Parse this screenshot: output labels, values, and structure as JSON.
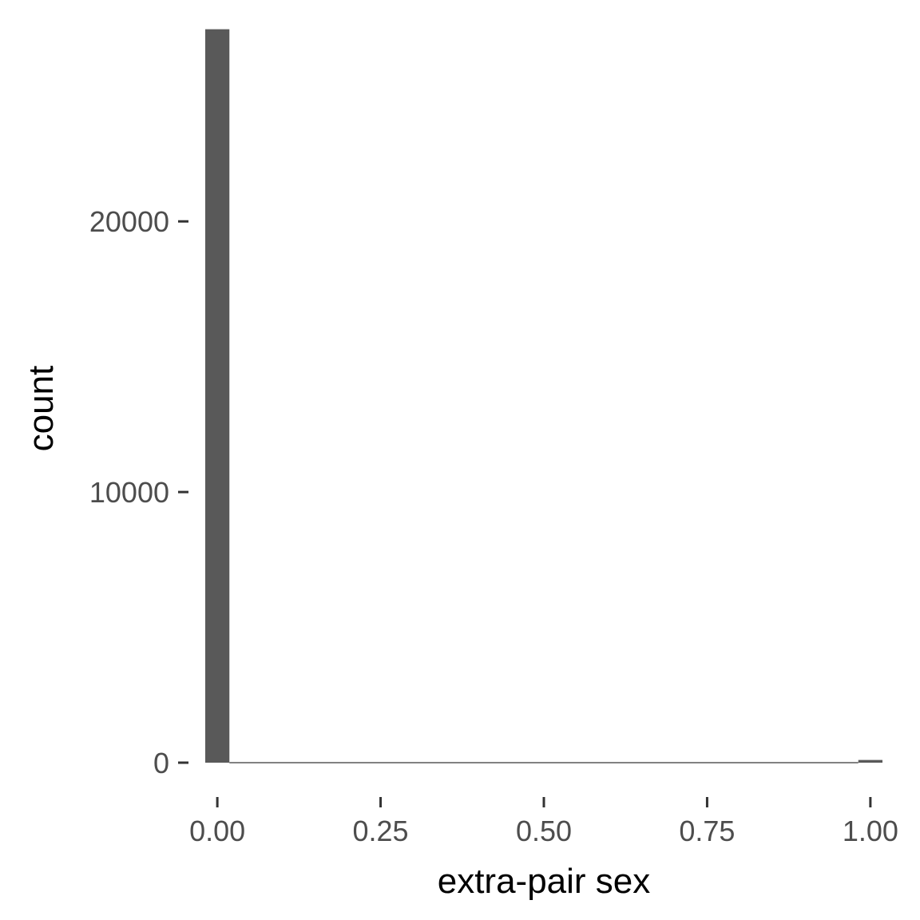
{
  "chart_data": {
    "type": "bar",
    "xlabel": "extra-pair sex",
    "ylabel": "count",
    "xlim": [
      -0.0185,
      1.0185
    ],
    "ylim": [
      0,
      27000
    ],
    "bin_width": 0.037,
    "x_ticks": [
      0.0,
      0.25,
      0.5,
      0.75,
      1.0
    ],
    "x_tick_labels": [
      "0.00",
      "0.25",
      "0.50",
      "0.75",
      "1.00"
    ],
    "y_ticks": [
      0,
      10000,
      20000
    ],
    "y_tick_labels": [
      "0",
      "10000",
      "20000"
    ],
    "bins": [
      {
        "x": 0.0,
        "count": 27100
      },
      {
        "x": 1.0,
        "count": 100
      }
    ],
    "bar_color": "#595959",
    "grid": false,
    "legend": "none"
  }
}
